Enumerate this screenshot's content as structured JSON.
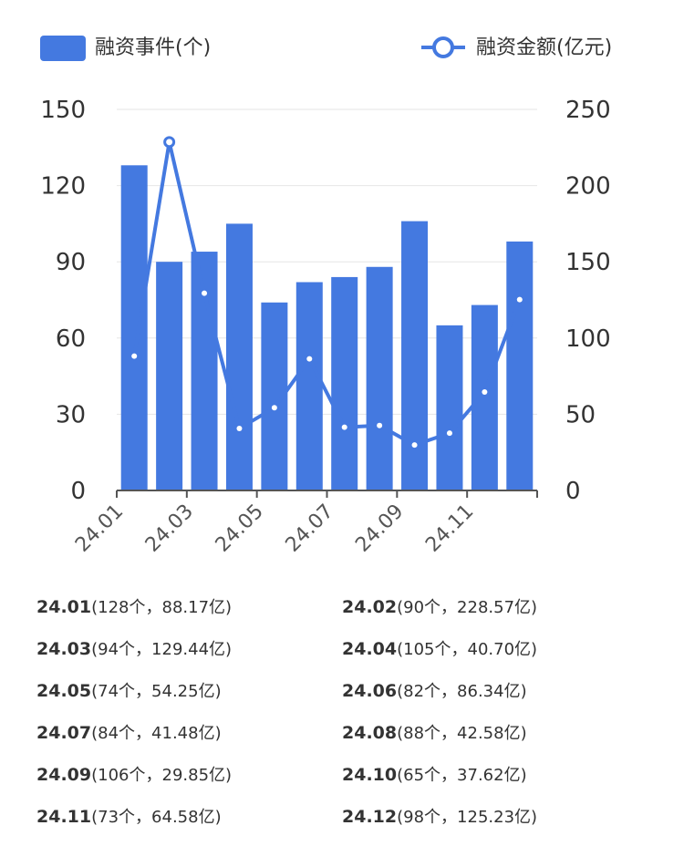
{
  "chart_data": {
    "type": "bar+line",
    "categories": [
      "24.01",
      "24.02",
      "24.03",
      "24.04",
      "24.05",
      "24.06",
      "24.07",
      "24.08",
      "24.09",
      "24.10",
      "24.11",
      "24.12"
    ],
    "x_tick_labels": [
      "24.01",
      "24.03",
      "24.05",
      "24.07",
      "24.09",
      "24.11"
    ],
    "series": [
      {
        "name": "融资事件(个)",
        "type": "bar",
        "axis": "left",
        "color": "#4479e0",
        "values": [
          128,
          90,
          94,
          105,
          74,
          82,
          84,
          88,
          106,
          65,
          73,
          98
        ]
      },
      {
        "name": "融资金额(亿元)",
        "type": "line",
        "axis": "right",
        "color": "#4479e0",
        "values": [
          88.17,
          228.57,
          129.44,
          40.7,
          54.25,
          86.34,
          41.48,
          42.58,
          29.85,
          37.62,
          64.58,
          125.23
        ]
      }
    ],
    "y_left": {
      "ticks": [
        "0",
        "30",
        "60",
        "90",
        "120",
        "150"
      ],
      "ylim": [
        0,
        150
      ]
    },
    "y_right": {
      "ticks": [
        "0",
        "50",
        "100",
        "150",
        "200",
        "250"
      ],
      "ylim": [
        0,
        250
      ]
    },
    "grid": true,
    "legend_position": "top"
  },
  "summary": [
    {
      "month": "24.01",
      "detail": "(128个，88.17亿)"
    },
    {
      "month": "24.02",
      "detail": "(90个，228.57亿)"
    },
    {
      "month": "24.03",
      "detail": "(94个，129.44亿)"
    },
    {
      "month": "24.04",
      "detail": "(105个，40.70亿)"
    },
    {
      "month": "24.05",
      "detail": "(74个，54.25亿)"
    },
    {
      "month": "24.06",
      "detail": "(82个，86.34亿)"
    },
    {
      "month": "24.07",
      "detail": "(84个，41.48亿)"
    },
    {
      "month": "24.08",
      "detail": "(88个，42.58亿)"
    },
    {
      "month": "24.09",
      "detail": "(106个，29.85亿)"
    },
    {
      "month": "24.10",
      "detail": "(65个，37.62亿)"
    },
    {
      "month": "24.11",
      "detail": "(73个，64.58亿)"
    },
    {
      "month": "24.12",
      "detail": "(98个，125.23亿)"
    }
  ]
}
